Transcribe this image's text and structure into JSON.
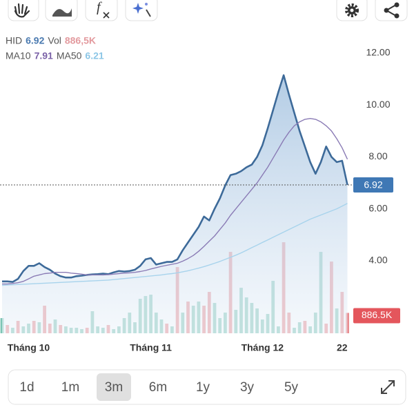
{
  "toolbar": {},
  "header": {
    "line1": [
      {
        "text": "HID",
        "color": "#555555"
      },
      {
        "text": "6.92",
        "color": "#4a7ab0"
      },
      {
        "text": "Vol",
        "color": "#555555"
      },
      {
        "text": "886,5K",
        "color": "#e39a9e"
      }
    ],
    "line2": [
      {
        "text": "MA10",
        "color": "#555555"
      },
      {
        "text": "7.91",
        "color": "#7b62a8"
      },
      {
        "text": "MA50",
        "color": "#555555"
      },
      {
        "text": "6.21",
        "color": "#8cc6e6"
      }
    ]
  },
  "chart_data": {
    "type": "line",
    "categories": [
      null,
      null,
      null,
      null,
      null,
      "Tháng 10",
      null,
      null,
      null,
      null,
      null,
      null,
      null,
      null,
      null,
      null,
      null,
      null,
      null,
      null,
      null,
      null,
      null,
      null,
      null,
      null,
      null,
      null,
      "Tháng 11",
      null,
      null,
      null,
      null,
      null,
      null,
      null,
      null,
      null,
      null,
      null,
      null,
      null,
      null,
      null,
      null,
      null,
      null,
      null,
      null,
      "Tháng 12",
      null,
      null,
      null,
      null,
      null,
      null,
      null,
      null,
      null,
      null,
      null,
      null,
      null,
      null,
      "22",
      null
    ],
    "series": [
      {
        "name": "HID",
        "color": "#3d6a99",
        "values": [
          3.2,
          3.2,
          3.18,
          3.3,
          3.6,
          3.8,
          3.8,
          3.9,
          3.75,
          3.65,
          3.5,
          3.4,
          3.35,
          3.35,
          3.4,
          3.42,
          3.45,
          3.47,
          3.48,
          3.5,
          3.48,
          3.55,
          3.6,
          3.58,
          3.6,
          3.65,
          3.8,
          4.05,
          4.1,
          3.85,
          3.9,
          3.95,
          3.95,
          4.05,
          4.4,
          4.7,
          5.0,
          5.3,
          5.7,
          5.55,
          6.0,
          6.4,
          6.9,
          7.3,
          7.35,
          7.45,
          7.6,
          7.7,
          8.0,
          8.45,
          9.1,
          9.8,
          10.5,
          11.15,
          10.4,
          9.7,
          9.0,
          8.4,
          7.8,
          7.35,
          7.8,
          8.4,
          8.0,
          7.8,
          7.85,
          6.92
        ]
      },
      {
        "name": "MA10",
        "color": "#8a7bb5",
        "values": [
          3.1,
          3.1,
          3.12,
          3.15,
          3.2,
          3.3,
          3.4,
          3.45,
          3.5,
          3.52,
          3.55,
          3.55,
          3.55,
          3.52,
          3.5,
          3.48,
          3.45,
          3.45,
          3.45,
          3.45,
          3.46,
          3.48,
          3.5,
          3.52,
          3.53,
          3.55,
          3.58,
          3.62,
          3.68,
          3.73,
          3.78,
          3.82,
          3.86,
          3.9,
          3.98,
          4.08,
          4.2,
          4.36,
          4.55,
          4.75,
          4.95,
          5.2,
          5.45,
          5.75,
          6.0,
          6.25,
          6.5,
          6.75,
          7.0,
          7.3,
          7.6,
          7.95,
          8.3,
          8.65,
          8.95,
          9.2,
          9.35,
          9.45,
          9.48,
          9.45,
          9.35,
          9.2,
          9.0,
          8.7,
          8.35,
          7.91
        ]
      },
      {
        "name": "MA50",
        "color": "#a7d3ec",
        "values": [
          3.05,
          3.06,
          3.07,
          3.08,
          3.09,
          3.1,
          3.11,
          3.12,
          3.13,
          3.14,
          3.15,
          3.16,
          3.17,
          3.18,
          3.19,
          3.2,
          3.21,
          3.22,
          3.23,
          3.24,
          3.25,
          3.27,
          3.29,
          3.31,
          3.33,
          3.35,
          3.37,
          3.39,
          3.41,
          3.43,
          3.45,
          3.48,
          3.5,
          3.53,
          3.57,
          3.61,
          3.66,
          3.71,
          3.77,
          3.83,
          3.9,
          3.97,
          4.05,
          4.13,
          4.21,
          4.3,
          4.4,
          4.5,
          4.6,
          4.7,
          4.8,
          4.9,
          5.0,
          5.1,
          5.2,
          5.3,
          5.4,
          5.5,
          5.6,
          5.68,
          5.76,
          5.84,
          5.92,
          6.0,
          6.1,
          6.21
        ]
      },
      {
        "name": "Vol",
        "type": "bar",
        "axis": "y2",
        "up_color": "#7cc4b4",
        "down_color": "#e8868a",
        "values": [
          660000,
          360000,
          240000,
          540000,
          300000,
          420000,
          540000,
          480000,
          1200000,
          420000,
          600000,
          360000,
          300000,
          240000,
          240000,
          180000,
          240000,
          960000,
          300000,
          240000,
          360000,
          180000,
          300000,
          660000,
          900000,
          480000,
          1500000,
          1620000,
          1680000,
          900000,
          600000,
          420000,
          300000,
          2880000,
          900000,
          1380000,
          1200000,
          1380000,
          1200000,
          1800000,
          1320000,
          660000,
          900000,
          3540000,
          1020000,
          1980000,
          1560000,
          1320000,
          1080000,
          600000,
          840000,
          2280000,
          300000,
          3960000,
          900000,
          240000,
          480000,
          540000,
          300000,
          900000,
          3540000,
          420000,
          3120000,
          1080000,
          1800000,
          886500
        ],
        "down": [
          false,
          true,
          false,
          true,
          false,
          false,
          true,
          false,
          true,
          true,
          false,
          true,
          false,
          false,
          false,
          false,
          true,
          false,
          false,
          false,
          true,
          false,
          false,
          false,
          false,
          false,
          false,
          false,
          false,
          false,
          false,
          true,
          false,
          true,
          false,
          true,
          false,
          false,
          true,
          true,
          false,
          false,
          false,
          true,
          false,
          false,
          false,
          false,
          false,
          false,
          false,
          false,
          false,
          true,
          true,
          false,
          false,
          true,
          false,
          false,
          false,
          true,
          true,
          false,
          true,
          true
        ]
      }
    ],
    "ylim": [
      1.2,
      12.5
    ],
    "yticks": [
      {
        "value": 4,
        "label": "4.00"
      },
      {
        "value": 6,
        "label": "6.00"
      },
      {
        "value": 8,
        "label": "8.00"
      },
      {
        "value": 10,
        "label": "10.00"
      },
      {
        "value": 12,
        "label": "12.00"
      }
    ],
    "y2lim": [
      0,
      12750000
    ],
    "markers": {
      "price": "6.92",
      "volume": "886.5K"
    },
    "area_fill": "#c9dcee"
  },
  "ranges": {
    "items": [
      "1d",
      "1m",
      "3m",
      "6m",
      "1y",
      "3y",
      "5y"
    ],
    "selected": 2
  }
}
